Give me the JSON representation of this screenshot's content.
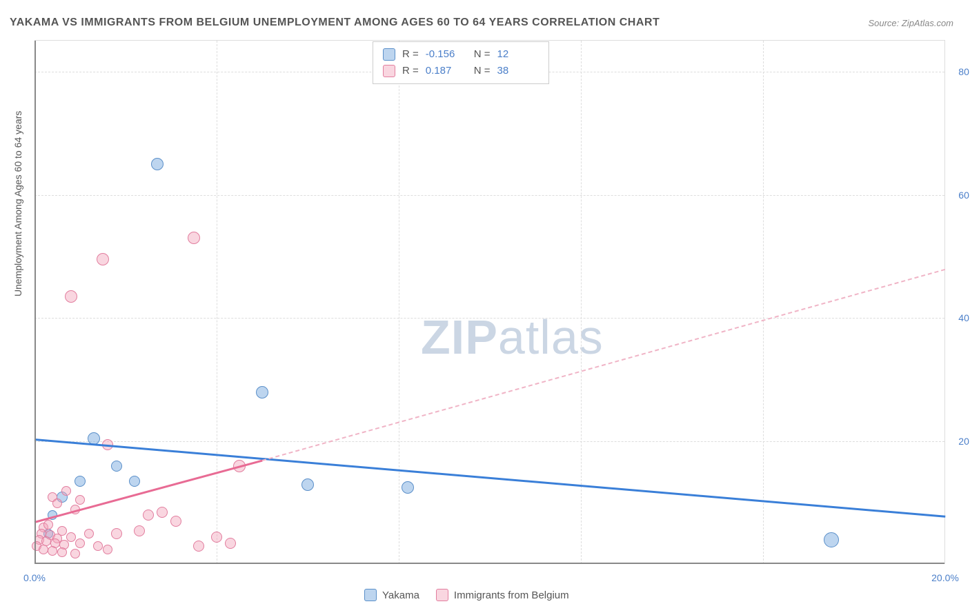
{
  "title": "YAKAMA VS IMMIGRANTS FROM BELGIUM UNEMPLOYMENT AMONG AGES 60 TO 64 YEARS CORRELATION CHART",
  "source": "Source: ZipAtlas.com",
  "ylabel": "Unemployment Among Ages 60 to 64 years",
  "watermark_bold": "ZIP",
  "watermark_rest": "atlas",
  "chart": {
    "type": "scatter",
    "xlim": [
      0,
      20
    ],
    "ylim": [
      0,
      85
    ],
    "xticks": [
      0,
      20
    ],
    "xtick_labels": [
      "0.0%",
      "20.0%"
    ],
    "yticks": [
      20,
      40,
      60,
      80
    ],
    "ytick_labels": [
      "20.0%",
      "40.0%",
      "60.0%",
      "80.0%"
    ],
    "vgrid_at": [
      4,
      8,
      12,
      16
    ],
    "background_color": "#ffffff",
    "grid_color": "#dddddd",
    "axis_color": "#888888",
    "series": [
      {
        "name": "Yakama",
        "color_fill": "rgba(135,178,226,0.55)",
        "color_stroke": "#5a8fc9",
        "trend_color": "#3a7fd8",
        "R": "-0.156",
        "N": "12",
        "points": [
          {
            "x": 2.7,
            "y": 65.0,
            "r": 9
          },
          {
            "x": 5.0,
            "y": 28.0,
            "r": 9
          },
          {
            "x": 1.3,
            "y": 20.5,
            "r": 9
          },
          {
            "x": 1.8,
            "y": 16.0,
            "r": 8
          },
          {
            "x": 2.2,
            "y": 13.5,
            "r": 8
          },
          {
            "x": 1.0,
            "y": 13.5,
            "r": 8
          },
          {
            "x": 0.6,
            "y": 11.0,
            "r": 8
          },
          {
            "x": 0.4,
            "y": 8.0,
            "r": 7
          },
          {
            "x": 6.0,
            "y": 13.0,
            "r": 9
          },
          {
            "x": 8.2,
            "y": 12.5,
            "r": 9
          },
          {
            "x": 17.5,
            "y": 4.0,
            "r": 11
          },
          {
            "x": 0.3,
            "y": 5.0,
            "r": 7
          }
        ],
        "trend": {
          "x1": 0,
          "y1": 20.5,
          "x2": 20,
          "y2": 8.0
        }
      },
      {
        "name": "Immigrants from Belgium",
        "color_fill": "rgba(242,163,186,0.45)",
        "color_stroke": "#e27d9e",
        "trend_color": "#e86b94",
        "R": "0.187",
        "N": "38",
        "points": [
          {
            "x": 3.5,
            "y": 53.0,
            "r": 9
          },
          {
            "x": 1.5,
            "y": 49.5,
            "r": 9
          },
          {
            "x": 0.8,
            "y": 43.5,
            "r": 9
          },
          {
            "x": 1.6,
            "y": 19.5,
            "r": 8
          },
          {
            "x": 4.5,
            "y": 16.0,
            "r": 9
          },
          {
            "x": 0.4,
            "y": 11.0,
            "r": 7
          },
          {
            "x": 0.7,
            "y": 12.0,
            "r": 7
          },
          {
            "x": 1.0,
            "y": 10.5,
            "r": 7
          },
          {
            "x": 0.5,
            "y": 10.0,
            "r": 7
          },
          {
            "x": 0.9,
            "y": 9.0,
            "r": 7
          },
          {
            "x": 2.8,
            "y": 8.5,
            "r": 8
          },
          {
            "x": 2.5,
            "y": 8.0,
            "r": 8
          },
          {
            "x": 3.1,
            "y": 7.0,
            "r": 8
          },
          {
            "x": 0.2,
            "y": 6.0,
            "r": 7
          },
          {
            "x": 0.3,
            "y": 6.5,
            "r": 7
          },
          {
            "x": 0.6,
            "y": 5.5,
            "r": 7
          },
          {
            "x": 1.2,
            "y": 5.0,
            "r": 7
          },
          {
            "x": 1.8,
            "y": 5.0,
            "r": 8
          },
          {
            "x": 2.3,
            "y": 5.5,
            "r": 8
          },
          {
            "x": 0.15,
            "y": 5.0,
            "r": 7
          },
          {
            "x": 0.35,
            "y": 4.8,
            "r": 7
          },
          {
            "x": 0.5,
            "y": 4.2,
            "r": 7
          },
          {
            "x": 0.8,
            "y": 4.5,
            "r": 7
          },
          {
            "x": 0.1,
            "y": 4.0,
            "r": 7
          },
          {
            "x": 0.25,
            "y": 3.8,
            "r": 7
          },
          {
            "x": 0.45,
            "y": 3.5,
            "r": 7
          },
          {
            "x": 0.65,
            "y": 3.2,
            "r": 7
          },
          {
            "x": 1.0,
            "y": 3.5,
            "r": 7
          },
          {
            "x": 1.4,
            "y": 3.0,
            "r": 7
          },
          {
            "x": 0.05,
            "y": 3.0,
            "r": 7
          },
          {
            "x": 0.2,
            "y": 2.5,
            "r": 7
          },
          {
            "x": 0.4,
            "y": 2.2,
            "r": 7
          },
          {
            "x": 0.6,
            "y": 2.0,
            "r": 7
          },
          {
            "x": 4.0,
            "y": 4.5,
            "r": 8
          },
          {
            "x": 4.3,
            "y": 3.5,
            "r": 8
          },
          {
            "x": 3.6,
            "y": 3.0,
            "r": 8
          },
          {
            "x": 1.6,
            "y": 2.5,
            "r": 7
          },
          {
            "x": 0.9,
            "y": 1.8,
            "r": 7
          }
        ],
        "trend": {
          "x1": 0,
          "y1": 7.0,
          "x2": 5.0,
          "y2": 17.0
        },
        "trend_extrapolate": {
          "x1": 5.0,
          "y1": 17.0,
          "x2": 20,
          "y2": 48.0
        }
      }
    ]
  },
  "legend_top": [
    {
      "swatch": "blue",
      "R_label": "R =",
      "R": "-0.156",
      "N_label": "N =",
      "N": "12"
    },
    {
      "swatch": "pink",
      "R_label": "R =",
      "R": "0.187",
      "N_label": "N =",
      "N": "38"
    }
  ],
  "legend_bottom": [
    {
      "swatch": "blue",
      "label": "Yakama"
    },
    {
      "swatch": "pink",
      "label": "Immigrants from Belgium"
    }
  ]
}
